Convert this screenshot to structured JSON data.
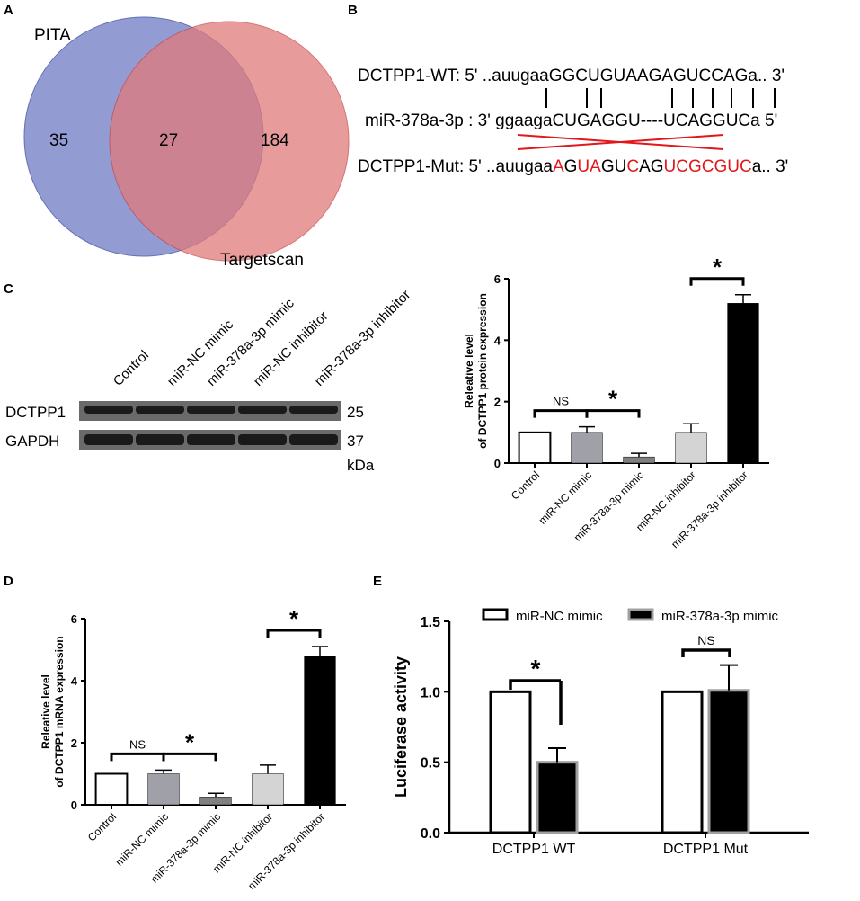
{
  "panels": {
    "A": "A",
    "B": "B",
    "C": "C",
    "D": "D",
    "E": "E"
  },
  "venn": {
    "left_label": "PITA",
    "right_label": "Targetscan",
    "left_only": "35",
    "overlap": "27",
    "right_only": "184",
    "left_color": "#7f8bcc",
    "overlap_color": "#a44f72",
    "right_color": "#e07a7a"
  },
  "sequences": {
    "wt_label": "DCTPP1-WT: 5' ..auugaa",
    "wt_core": "GGCUGUAAGAGUCCAG",
    "wt_tail": "a.. 3'",
    "mir_label": "miR-378a-3p : 3' ggaaga",
    "mir_core": "CUGAGGU----UCAGGUC",
    "mir_tail": "a 5'",
    "mut_label": "DCTPP1-Mut: 5' ..auugaa",
    "mut_segments": [
      {
        "text": "A",
        "red": true
      },
      {
        "text": "G",
        "red": false
      },
      {
        "text": "UA",
        "red": true
      },
      {
        "text": "GU",
        "red": false
      },
      {
        "text": "C",
        "red": true
      },
      {
        "text": "AG",
        "red": false
      },
      {
        "text": "UCGCGUC",
        "red": true
      }
    ],
    "mut_tail": "a.. 3'",
    "mutation_color": "#e0181b"
  },
  "blot": {
    "lanes": [
      "Control",
      "miR-NC mimic",
      "miR-378a-3p mimic",
      "miR-NC inhibitor",
      "miR-378a-3p inhibitor"
    ],
    "rows": [
      {
        "label": "DCTPP1",
        "size": "25"
      },
      {
        "label": "GAPDH",
        "size": "37"
      }
    ],
    "unit": "kDa"
  },
  "chart_data": [
    {
      "id": "C",
      "type": "bar",
      "categories": [
        "Control",
        "miR-NC mimic",
        "miR-378a-3p mimic",
        "miR-NC inhibitor",
        "miR-378a-3p inhibitor"
      ],
      "values": [
        1.0,
        1.0,
        0.2,
        1.0,
        5.2
      ],
      "errors": [
        0,
        0.18,
        0.12,
        0.28,
        0.28
      ],
      "colors": [
        "#ffffff",
        "#a0a0a8",
        "#808080",
        "#d4d4d4",
        "#000000"
      ],
      "ylabel": "Releative level\nof DCTPP1 protein expression",
      "ylim": [
        0,
        6
      ],
      "yticks": [
        0,
        2,
        4,
        6
      ],
      "annotations": [
        {
          "label": "NS",
          "from": 0,
          "to": 1
        },
        {
          "label": "*",
          "from": 1,
          "to": 2
        },
        {
          "label": "*",
          "from": 3,
          "to": 4
        }
      ]
    },
    {
      "id": "D",
      "type": "bar",
      "categories": [
        "Control",
        "miR-NC mimic",
        "miR-378a-3p mimic",
        "miR-NC inhibitor",
        "miR-378a-3p inhibitor"
      ],
      "values": [
        1.0,
        1.0,
        0.25,
        1.0,
        4.8
      ],
      "errors": [
        0,
        0.12,
        0.12,
        0.28,
        0.3
      ],
      "colors": [
        "#ffffff",
        "#a0a0a8",
        "#808080",
        "#d4d4d4",
        "#000000"
      ],
      "ylabel": "Releative level\nof DCTPP1 mRNA expression",
      "ylim": [
        0,
        6
      ],
      "yticks": [
        0,
        2,
        4,
        6
      ],
      "annotations": [
        {
          "label": "NS",
          "from": 0,
          "to": 1
        },
        {
          "label": "*",
          "from": 1,
          "to": 2
        },
        {
          "label": "*",
          "from": 3,
          "to": 4
        }
      ]
    },
    {
      "id": "E",
      "type": "bar",
      "categories": [
        "DCTPP1 WT",
        "DCTPP1 Mut"
      ],
      "series": [
        {
          "name": "miR-NC mimic",
          "values": [
            1.0,
            1.0
          ],
          "errors": [
            0,
            0
          ]
        },
        {
          "name": "miR-378a-3p mimic",
          "values": [
            0.5,
            1.01
          ],
          "errors": [
            0.1,
            0.18
          ]
        }
      ],
      "ylabel": "Luciferase activity",
      "ylim": [
        0,
        1.5
      ],
      "yticks": [
        "0.0",
        "0.5",
        "1.0",
        "1.5"
      ],
      "legend": "top",
      "annotations": [
        {
          "label": "*",
          "group": 0
        },
        {
          "label": "NS",
          "group": 1
        }
      ]
    }
  ]
}
